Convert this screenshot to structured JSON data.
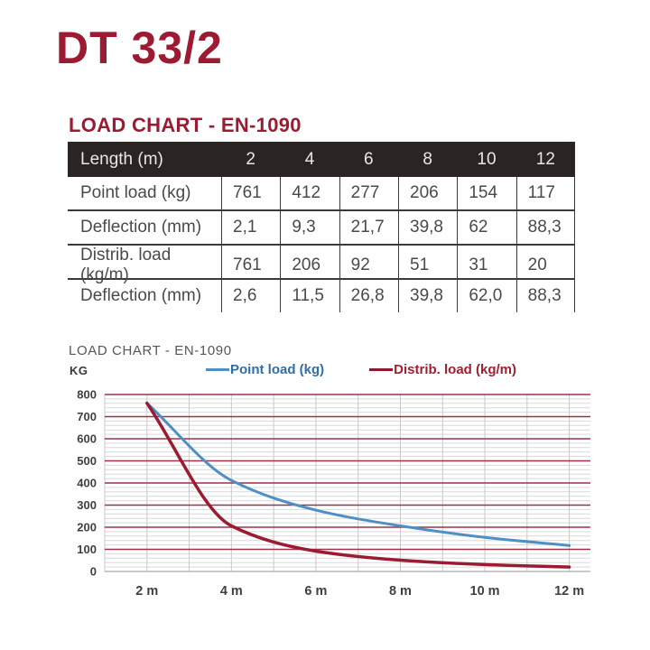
{
  "page": {
    "title": "DT 33/2",
    "section_heading": "LOAD CHART - EN-1090"
  },
  "colors": {
    "accent_maroon": "#9c1b33",
    "table_header_bg": "#2a2424",
    "point_load_line": "#4e90c5",
    "point_load_text": "#2e6fa7",
    "distrib_load_line": "#9a1b32",
    "distrib_load_dash": "#8c192d",
    "distrib_load_text": "#a31e30",
    "grid_major": "#9c3248",
    "grid_minor": "#d9d9d9",
    "grid_vertical": "#c9c9c9",
    "axis_text": "#3f3f3f"
  },
  "table": {
    "header_label": "Length (m)",
    "columns": [
      "2",
      "4",
      "6",
      "8",
      "10",
      "12"
    ],
    "rows": [
      {
        "label": "Point load (kg)",
        "values": [
          "761",
          "412",
          "277",
          "206",
          "154",
          "117"
        ]
      },
      {
        "label": "Deflection (mm)",
        "values": [
          "2,1",
          "9,3",
          "21,7",
          "39,8",
          "62",
          "88,3"
        ]
      },
      {
        "label": "Distrib. load (kg/m)",
        "values": [
          "761",
          "206",
          "92",
          "51",
          "31",
          "20"
        ]
      },
      {
        "label": "Deflection (mm)",
        "values": [
          "2,6",
          "11,5",
          "26,8",
          "39,8",
          "62,0",
          "88,3"
        ]
      }
    ]
  },
  "chart": {
    "title": "LOAD CHART - EN-1090",
    "y_axis_label": "KG",
    "legend": [
      {
        "label": "Point load (kg)",
        "dash_color": "#4e90c5",
        "text_color": "#2e6fa7"
      },
      {
        "label": "Distrib. load (kg/m)",
        "dash_color": "#8c192d",
        "text_color": "#a31e30"
      }
    ]
  },
  "chart_data": {
    "type": "line",
    "title": "LOAD CHART - EN-1090",
    "ylabel": "KG",
    "xlabel": "",
    "x": [
      2,
      4,
      6,
      8,
      10,
      12
    ],
    "series": [
      {
        "name": "Point load (kg)",
        "values": [
          761,
          412,
          277,
          206,
          154,
          117
        ],
        "color": "#4e90c5",
        "width": 3
      },
      {
        "name": "Distrib. load (kg/m)",
        "values": [
          761,
          206,
          92,
          51,
          31,
          20
        ],
        "color": "#9a1b32",
        "width": 3.5
      }
    ],
    "xtick_labels": [
      "2 m",
      "4 m",
      "6 m",
      "8 m",
      "10 m",
      "12 m"
    ],
    "ytick_values": [
      0,
      100,
      200,
      300,
      400,
      500,
      600,
      700,
      800
    ],
    "ylim": [
      0,
      800
    ],
    "xlim": [
      1,
      12.5
    ],
    "grid": {
      "minor_step": 20,
      "vertical_step": 1,
      "legend_position": "top"
    }
  }
}
